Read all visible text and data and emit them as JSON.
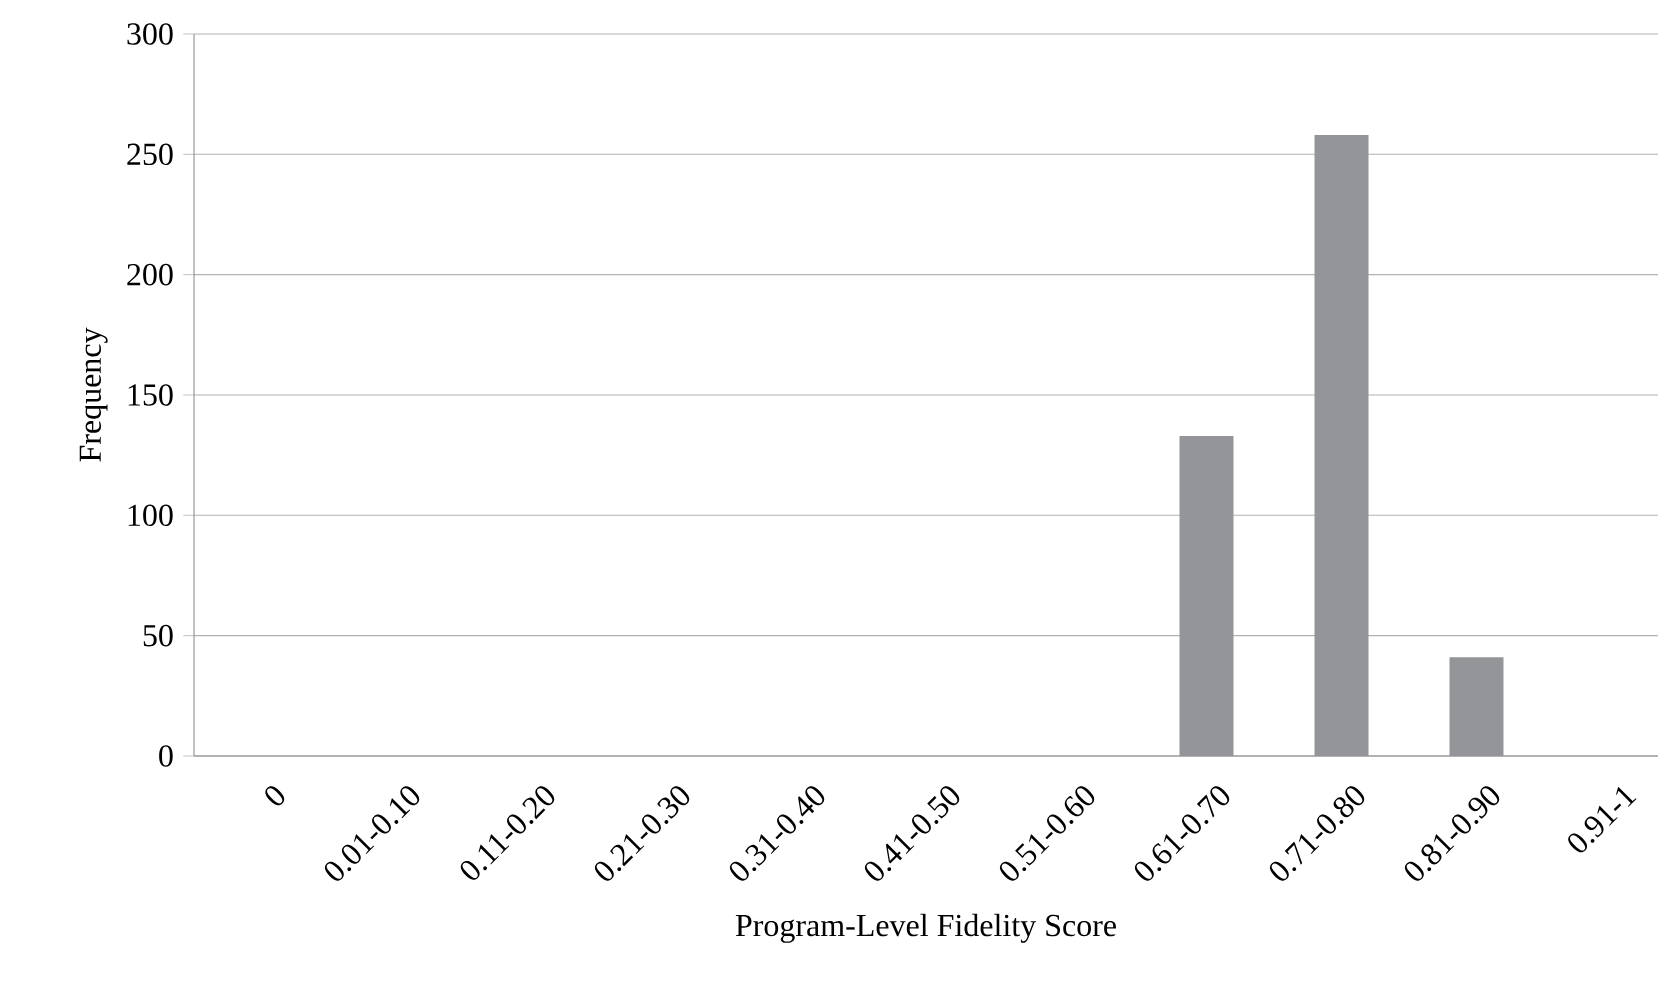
{
  "chart_data": {
    "type": "bar",
    "xlabel": "Program-Level Fidelity Score",
    "ylabel": "Frequency",
    "categories": [
      "0",
      "0.01-0.10",
      "0.11-0.20",
      "0.21-0.30",
      "0.31-0.40",
      "0.41-0.50",
      "0.51-0.60",
      "0.61-0.70",
      "0.71-0.80",
      "0.81-0.90",
      "0.91-1"
    ],
    "values": [
      0,
      0,
      0,
      0,
      0,
      0,
      0,
      133,
      258,
      41,
      0
    ],
    "color": "#939598",
    "ylim": [
      0,
      300
    ],
    "yticks": [
      0,
      50,
      100,
      150,
      200,
      250,
      300
    ],
    "grid": "y"
  }
}
